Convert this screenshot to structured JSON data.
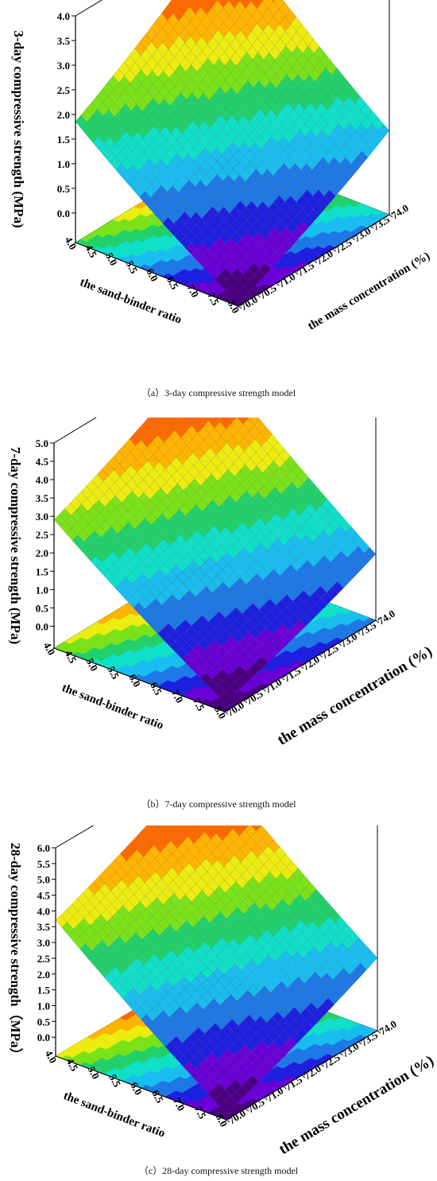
{
  "chart_data": [
    {
      "type": "surface3d",
      "caption": "（a）3-day compressive strength model",
      "zlabel": "3-day compressive strength (MPa)",
      "xlabel": "the sand-binder ratio",
      "ylabel": "the mass concentration (%)",
      "x_ticks": [
        "4.0",
        "4.5",
        "5.0",
        "5.5",
        "6.0",
        "6.5",
        "7.0",
        "7.5",
        "8.0"
      ],
      "y_ticks": [
        "70.0",
        "70.5",
        "71.0",
        "71.5",
        "72.0",
        "72.5",
        "73.0",
        "73.5",
        "74.0"
      ],
      "z_ticks": [
        "0.0",
        "0.5",
        "1.0",
        "1.5",
        "2.0",
        "2.5",
        "3.0",
        "3.5",
        "4.0"
      ],
      "x_range": [
        4.0,
        8.0
      ],
      "y_range": [
        70.0,
        74.0
      ],
      "zlim": [
        -0.6,
        4.0
      ],
      "corner_values": {
        "x4_y70": 1.85,
        "x4_y74": 4.0,
        "x8_y70": -0.55,
        "x8_y74": 1.1
      },
      "min_value": -0.55,
      "max_value": 4.0
    },
    {
      "type": "surface3d",
      "caption": "（b）7-day compressive strength model",
      "zlabel": "7-day compressive strength (MPa)",
      "xlabel": "the sand-binder ratio",
      "ylabel": "the mass concentration (%)",
      "x_ticks": [
        "4.0",
        "4.5",
        "5.0",
        "5.5",
        "6.0",
        "6.5",
        "7.0",
        "7.5",
        "8.0"
      ],
      "y_ticks": [
        "70.0",
        "70.5",
        "71.0",
        "71.5",
        "72.0",
        "72.5",
        "73.0",
        "73.5",
        "74.0"
      ],
      "z_ticks": [
        "0.0",
        "0.5",
        "1.0",
        "1.5",
        "2.0",
        "2.5",
        "3.0",
        "3.5",
        "4.0",
        "4.5",
        "5.0"
      ],
      "x_range": [
        4.0,
        8.0
      ],
      "y_range": [
        70.0,
        74.0
      ],
      "zlim": [
        -0.6,
        5.0
      ],
      "corner_values": {
        "x4_y70": 2.9,
        "x4_y74": 5.0,
        "x8_y70": -0.35,
        "x8_y74": 1.2
      },
      "min_value": -0.35,
      "max_value": 5.0
    },
    {
      "type": "surface3d",
      "caption": "（c）28-day compressive strength model",
      "zlabel": "28-day compressive strength（MPa）",
      "xlabel": "the sand-binder ratio",
      "ylabel": "the mass concentration (%)",
      "x_ticks": [
        "4.0",
        "4.5",
        "5.0",
        "5.5",
        "6.0",
        "6.5",
        "7.0",
        "7.5",
        "8.0"
      ],
      "y_ticks": [
        "70.0",
        "70.5",
        "71.0",
        "71.5",
        "72.0",
        "72.5",
        "73.0",
        "73.5",
        "74.0"
      ],
      "z_ticks": [
        "0.0",
        "0.5",
        "1.0",
        "1.5",
        "2.0",
        "2.5",
        "3.0",
        "3.5",
        "4.0",
        "4.5",
        "5.0",
        "5.5",
        "6.0"
      ],
      "x_range": [
        4.0,
        8.0
      ],
      "y_range": [
        70.0,
        74.0
      ],
      "zlim": [
        -0.6,
        6.0
      ],
      "corner_values": {
        "x4_y70": 3.7,
        "x4_y74": 6.0,
        "x8_y70": -0.4,
        "x8_y74": 1.7
      },
      "min_value": -0.4,
      "max_value": 6.0
    }
  ],
  "colors": {
    "colormap": [
      "#4b0082",
      "#6a00d6",
      "#1f1fe0",
      "#1e78e6",
      "#19bdf0",
      "#10e0c8",
      "#22d06a",
      "#7be21a",
      "#ecec10",
      "#ffb400",
      "#ff6a00",
      "#ee0a0a",
      "#b80000"
    ],
    "axis": "#000000",
    "grid": "#888888"
  }
}
